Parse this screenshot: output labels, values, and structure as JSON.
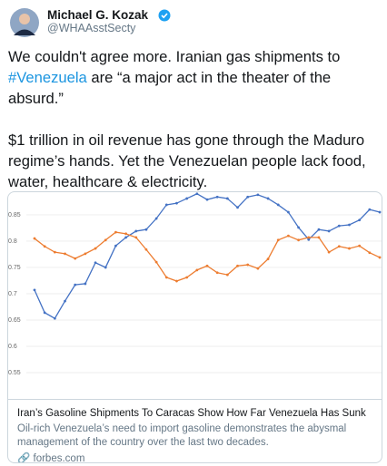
{
  "author": {
    "name": "Michael G. Kozak",
    "handle": "@WHAAsstSecty"
  },
  "tweet": {
    "paragraph1": {
      "before": "We couldn't agree more. Iranian gas shipments to ",
      "hashtag": "#Venezuela",
      "after": " are “a major act in the theater of the absurd.”"
    },
    "paragraph2": "$1 trillion in oil revenue has gone through the Maduro regime’s hands. Yet the Venezuelan people lack food, water, healthcare & electricity."
  },
  "card": {
    "title": "Iran’s Gasoline Shipments To Caracas Show How Far Venezuela Has Sunk",
    "description": "Oil-rich Venezuela’s need to import gasoline demonstrates the abysmal management of the country over the last two decades.",
    "domain": "forbes.com"
  },
  "chart_data": {
    "type": "line",
    "categories": [
      null,
      null,
      null,
      null,
      null,
      null,
      null,
      null,
      null,
      null,
      null,
      null,
      null,
      null,
      null,
      null,
      null,
      null,
      null,
      null,
      null,
      null,
      null,
      null,
      null,
      null,
      null,
      null,
      null,
      null,
      null,
      null,
      null,
      null,
      null
    ],
    "series": [
      {
        "color": "#4472c4",
        "values": [
          0.707,
          0.664,
          0.653,
          0.686,
          0.717,
          0.719,
          0.759,
          0.75,
          0.791,
          0.807,
          0.819,
          0.822,
          0.843,
          0.869,
          0.872,
          0.881,
          0.89,
          0.879,
          0.884,
          0.881,
          0.864,
          0.884,
          0.888,
          0.881,
          0.869,
          0.855,
          0.826,
          0.803,
          0.822,
          0.819,
          0.829,
          0.831,
          0.84,
          0.86,
          0.855
        ]
      },
      {
        "color": "#ed7d31",
        "values": [
          0.805,
          0.79,
          0.779,
          0.776,
          0.767,
          0.776,
          0.786,
          0.802,
          0.817,
          0.814,
          0.807,
          0.784,
          0.76,
          0.731,
          0.724,
          0.731,
          0.745,
          0.753,
          0.74,
          0.736,
          0.753,
          0.755,
          0.748,
          0.766,
          0.802,
          0.81,
          0.802,
          0.807,
          0.807,
          0.779,
          0.79,
          0.786,
          0.791,
          0.778,
          0.769
        ]
      }
    ],
    "ylim": [
      0.5,
      0.893
    ],
    "yticks": [
      0.55,
      0.6,
      0.65,
      0.7,
      0.75,
      0.8,
      0.85
    ],
    "grid": true
  }
}
